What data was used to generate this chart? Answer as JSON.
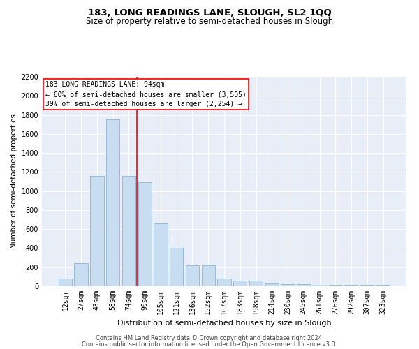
{
  "title1": "183, LONG READINGS LANE, SLOUGH, SL2 1QQ",
  "title2": "Size of property relative to semi-detached houses in Slough",
  "xlabel": "Distribution of semi-detached houses by size in Slough",
  "ylabel": "Number of semi-detached properties",
  "categories": [
    "12sqm",
    "27sqm",
    "43sqm",
    "58sqm",
    "74sqm",
    "90sqm",
    "105sqm",
    "121sqm",
    "136sqm",
    "152sqm",
    "167sqm",
    "183sqm",
    "198sqm",
    "214sqm",
    "230sqm",
    "245sqm",
    "261sqm",
    "276sqm",
    "292sqm",
    "307sqm",
    "323sqm"
  ],
  "values": [
    80,
    240,
    1160,
    1750,
    1160,
    1090,
    660,
    400,
    220,
    220,
    80,
    60,
    60,
    30,
    20,
    20,
    15,
    10,
    10,
    5,
    5
  ],
  "bar_color": "#c9ddf0",
  "bar_edge_color": "#8cb4d5",
  "annotation_title": "183 LONG READINGS LANE: 94sqm",
  "annotation_line1": "← 60% of semi-detached houses are smaller (3,505)",
  "annotation_line2": "39% of semi-detached houses are larger (2,254) →",
  "ylim": [
    0,
    2200
  ],
  "yticks": [
    0,
    200,
    400,
    600,
    800,
    1000,
    1200,
    1400,
    1600,
    1800,
    2000,
    2200
  ],
  "footer1": "Contains HM Land Registry data © Crown copyright and database right 2024.",
  "footer2": "Contains public sector information licensed under the Open Government Licence v3.0.",
  "bg_color": "#e8eef8",
  "grid_color": "#ffffff",
  "title_fontsize": 9.5,
  "subtitle_fontsize": 8.5,
  "tick_fontsize": 7,
  "ylabel_fontsize": 7.5,
  "xlabel_fontsize": 8,
  "footer_fontsize": 6,
  "annot_fontsize": 7
}
